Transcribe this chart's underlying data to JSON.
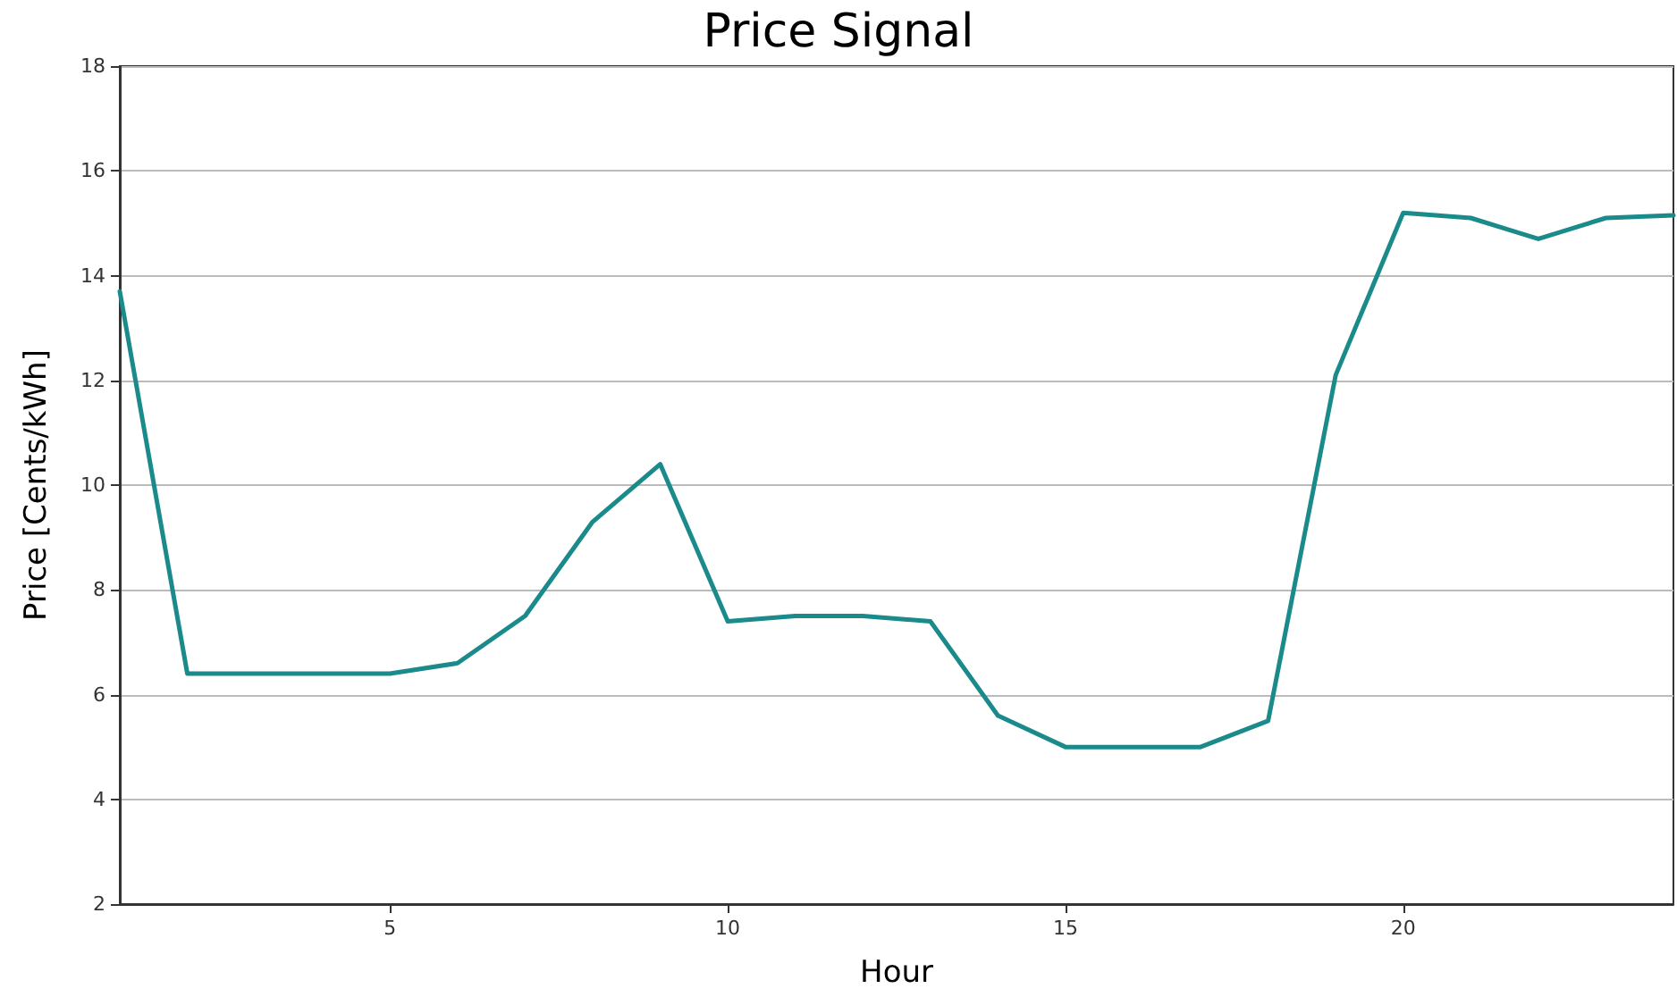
{
  "chart_data": {
    "type": "line",
    "title": "Price Signal",
    "xlabel": "Hour",
    "ylabel": "Price [Cents/kWh]",
    "x": [
      1,
      2,
      3,
      4,
      5,
      6,
      7,
      8,
      9,
      10,
      11,
      12,
      13,
      14,
      15,
      16,
      17,
      18,
      19,
      20,
      21,
      22,
      23,
      24
    ],
    "series": [
      {
        "color": "#1a8a8a",
        "values": [
          13.7,
          6.4,
          6.4,
          6.4,
          6.4,
          6.6,
          7.5,
          9.3,
          10.4,
          7.4,
          7.5,
          7.5,
          7.4,
          5.6,
          5.0,
          5.0,
          5.0,
          5.5,
          12.1,
          15.2,
          15.1,
          14.7,
          15.1,
          15.15
        ]
      }
    ],
    "xlim": [
      1,
      24
    ],
    "xticks": [
      5,
      10,
      15,
      20
    ],
    "ylim": [
      2,
      18
    ],
    "yticks": [
      2,
      4,
      6,
      8,
      10,
      12,
      14,
      16,
      18
    ],
    "grid": "y",
    "marker": "none",
    "line_style": "solid"
  }
}
